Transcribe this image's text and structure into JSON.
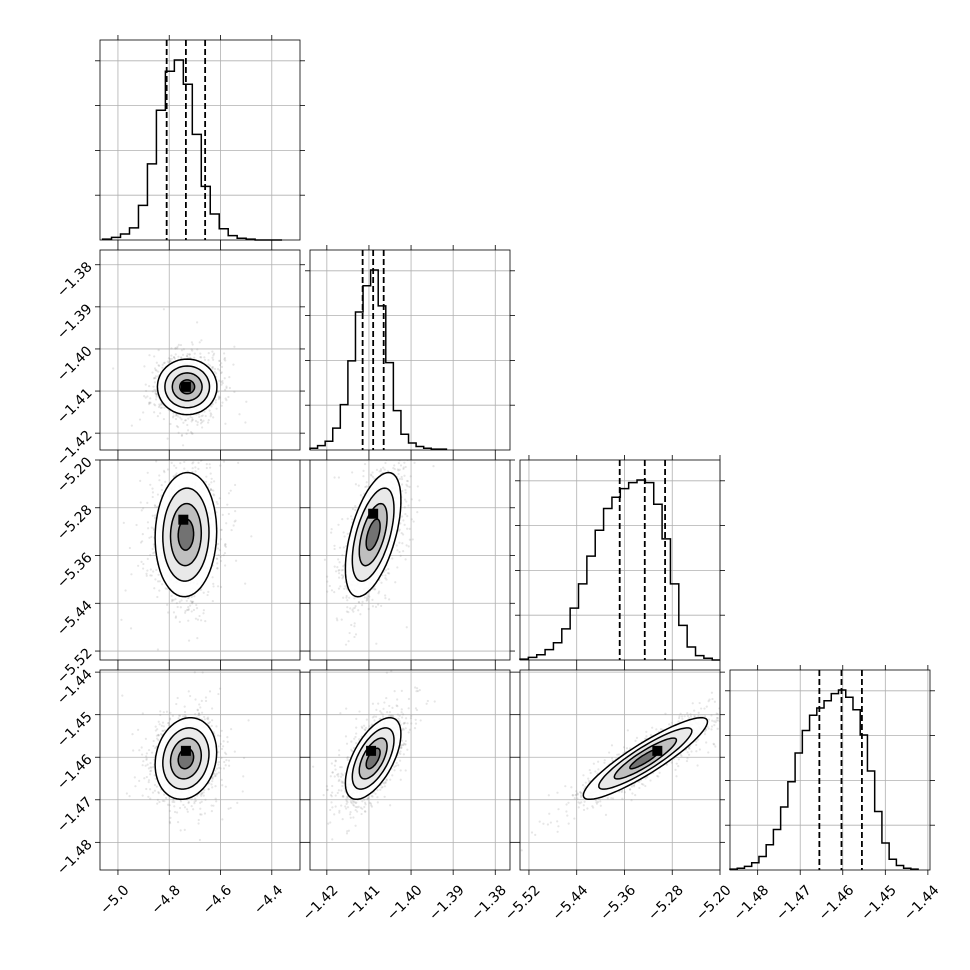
{
  "chart_data": {
    "type": "corner",
    "parameters": [
      {
        "ticks": [
          -5.0,
          -4.8,
          -4.6,
          -4.4
        ],
        "tick_labels": [
          "−5.0",
          "−4.8",
          "−4.6",
          "−4.4"
        ],
        "range": [
          -5.07,
          -4.29
        ],
        "quantiles": [
          -4.81,
          -4.735,
          -4.66
        ],
        "hist_edges": [
          -5.06,
          -5.025,
          -4.99,
          -4.955,
          -4.92,
          -4.885,
          -4.85,
          -4.815,
          -4.78,
          -4.745,
          -4.71,
          -4.675,
          -4.64,
          -4.605,
          -4.57,
          -4.535,
          -4.5,
          -4.465,
          -4.43,
          -4.395,
          -4.36
        ],
        "hist_counts": [
          1,
          3,
          7,
          14,
          40,
          88,
          150,
          195,
          208,
          180,
          122,
          62,
          30,
          13,
          5,
          2,
          1,
          0,
          0,
          0
        ]
      },
      {
        "ticks": [
          -1.42,
          -1.41,
          -1.4,
          -1.39,
          -1.38
        ],
        "tick_labels": [
          "−1.42",
          "−1.41",
          "−1.40",
          "−1.39",
          "−1.38"
        ],
        "range": [
          -1.424,
          -1.3765
        ],
        "quantiles": [
          -1.4115,
          -1.409,
          -1.4065
        ],
        "hist_edges": [
          -1.424,
          -1.4222,
          -1.4204,
          -1.4186,
          -1.4168,
          -1.415,
          -1.4132,
          -1.4114,
          -1.4096,
          -1.4078,
          -1.406,
          -1.4042,
          -1.4024,
          -1.4006,
          -1.3988,
          -1.397,
          -1.3952,
          -1.3934,
          -1.3916
        ],
        "hist_counts": [
          2,
          5,
          10,
          25,
          52,
          102,
          158,
          188,
          206,
          165,
          100,
          45,
          18,
          8,
          4,
          2,
          1,
          1
        ]
      },
      {
        "ticks": [
          -5.52,
          -5.44,
          -5.36,
          -5.28,
          -5.2
        ],
        "tick_labels": [
          "−5.52",
          "−5.44",
          "−5.36",
          "−5.28",
          "−5.20"
        ],
        "range": [
          -5.535,
          -5.2
        ],
        "quantiles": [
          -5.368,
          -5.326,
          -5.292
        ],
        "hist_edges": [
          -5.535,
          -5.521,
          -5.507,
          -5.493,
          -5.479,
          -5.465,
          -5.451,
          -5.437,
          -5.423,
          -5.409,
          -5.395,
          -5.381,
          -5.367,
          -5.353,
          -5.339,
          -5.325,
          -5.311,
          -5.297,
          -5.283,
          -5.269,
          -5.255,
          -5.241,
          -5.227,
          -5.213,
          -5.2
        ],
        "hist_counts": [
          1,
          3,
          6,
          12,
          20,
          36,
          60,
          88,
          120,
          150,
          175,
          188,
          198,
          205,
          208,
          205,
          180,
          140,
          88,
          40,
          15,
          5,
          2,
          0
        ]
      },
      {
        "ticks": [
          -1.48,
          -1.47,
          -1.46,
          -1.45,
          -1.44
        ],
        "tick_labels": [
          "−1.48",
          "−1.47",
          "−1.46",
          "−1.45",
          "−1.44"
        ],
        "range": [
          -1.4865,
          -1.4395
        ],
        "quantiles": [
          -1.4655,
          -1.4603,
          -1.4555
        ],
        "hist_edges": [
          -1.4865,
          -1.4848,
          -1.4831,
          -1.4814,
          -1.4797,
          -1.478,
          -1.4763,
          -1.4746,
          -1.4729,
          -1.4712,
          -1.4695,
          -1.4678,
          -1.4661,
          -1.4644,
          -1.4627,
          -1.461,
          -1.4593,
          -1.4576,
          -1.4559,
          -1.4542,
          -1.4525,
          -1.4508,
          -1.4491,
          -1.4474,
          -1.4457,
          -1.444,
          -1.4423
        ],
        "hist_counts": [
          1,
          2,
          4,
          8,
          15,
          28,
          45,
          70,
          98,
          130,
          155,
          172,
          180,
          188,
          196,
          200,
          192,
          178,
          150,
          110,
          65,
          30,
          12,
          5,
          2,
          1
        ]
      }
    ],
    "pairs": [
      {
        "row": 1,
        "col": 0,
        "mean": [
          -4.73,
          -1.409
        ],
        "sd": [
          0.058,
          0.0033
        ],
        "corr": 0.0,
        "mode": [
          -4.735,
          -1.409
        ]
      },
      {
        "row": 2,
        "col": 0,
        "mean": [
          -4.735,
          -5.325
        ],
        "sd": [
          0.06,
          0.052
        ],
        "corr": 0.05,
        "mode": [
          -4.745,
          -5.3
        ]
      },
      {
        "row": 2,
        "col": 1,
        "mean": [
          -1.409,
          -5.325
        ],
        "sd": [
          0.0033,
          0.052
        ],
        "corr": 0.55,
        "mode": [
          -1.409,
          -5.29
        ]
      },
      {
        "row": 3,
        "col": 0,
        "mean": [
          -4.735,
          -1.4603
        ],
        "sd": [
          0.06,
          0.0048
        ],
        "corr": 0.15,
        "mode": [
          -4.735,
          -1.4585
        ]
      },
      {
        "row": 3,
        "col": 1,
        "mean": [
          -1.409,
          -1.4603
        ],
        "sd": [
          0.0033,
          0.0048
        ],
        "corr": 0.6,
        "mode": [
          -1.4095,
          -1.4585
        ]
      },
      {
        "row": 3,
        "col": 2,
        "mean": [
          -5.325,
          -1.4603
        ],
        "sd": [
          0.052,
          0.0048
        ],
        "corr": 0.9,
        "mode": [
          -5.305,
          -1.4585
        ]
      }
    ],
    "contour_levels_sigma": [
      0.5,
      1.0,
      1.5,
      2.0
    ],
    "colors": {
      "line": "#000000",
      "grid": "#b0b0b0",
      "points": "#8c8c8c"
    }
  }
}
